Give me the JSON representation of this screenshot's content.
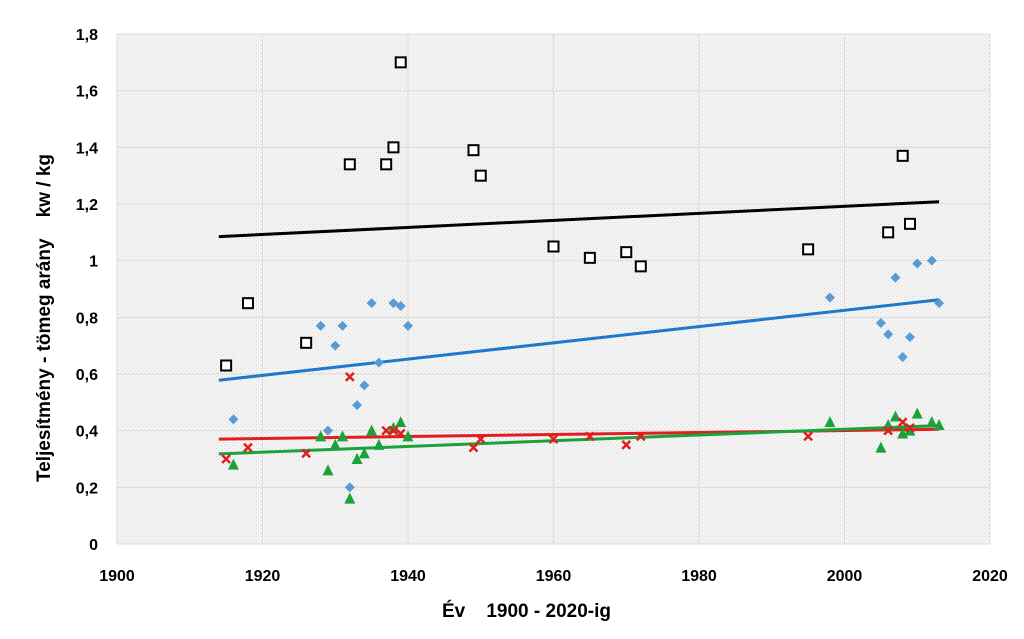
{
  "chart_data": {
    "type": "scatter",
    "xlabel": "Év    1900 - 2020-ig",
    "ylabel": "Teljesítmény - tömeg arány    kw / kg",
    "xlim": [
      1900,
      2020
    ],
    "ylim": [
      0,
      1.8
    ],
    "x_ticks": [
      1900,
      1920,
      1940,
      1960,
      1980,
      2000,
      2020
    ],
    "y_ticks": [
      0,
      0.2,
      0.4,
      0.6,
      0.8,
      1,
      1.2,
      1.4,
      1.6,
      1.8
    ],
    "y_tick_labels": [
      "0",
      "0,2",
      "0,4",
      "0,6",
      "0,8",
      "1",
      "1,2",
      "1,4",
      "1,6",
      "1,8"
    ],
    "grid": true,
    "plot_background": "#f2f2f2",
    "series": [
      {
        "marker": "open-square",
        "color": "#000000",
        "points": [
          [
            1915,
            0.63
          ],
          [
            1918,
            0.85
          ],
          [
            1926,
            0.71
          ],
          [
            1932,
            1.34
          ],
          [
            1937,
            1.34
          ],
          [
            1938,
            1.4
          ],
          [
            1939,
            1.7
          ],
          [
            1949,
            1.39
          ],
          [
            1950,
            1.3
          ],
          [
            1960,
            1.05
          ],
          [
            1965,
            1.01
          ],
          [
            1970,
            1.03
          ],
          [
            1972,
            0.98
          ],
          [
            1995,
            1.04
          ],
          [
            2006,
            1.1
          ],
          [
            2008,
            1.37
          ],
          [
            2009,
            1.13
          ]
        ],
        "trend": {
          "color": "#000000",
          "from": [
            1914,
            1.085
          ],
          "to": [
            2013,
            1.208
          ]
        }
      },
      {
        "marker": "diamond",
        "color": "#5b9bd5",
        "points": [
          [
            1916,
            0.44
          ],
          [
            1928,
            0.77
          ],
          [
            1929,
            0.4
          ],
          [
            1930,
            0.7
          ],
          [
            1931,
            0.77
          ],
          [
            1932,
            0.2
          ],
          [
            1933,
            0.49
          ],
          [
            1934,
            0.56
          ],
          [
            1935,
            0.85
          ],
          [
            1936,
            0.64
          ],
          [
            1938,
            0.85
          ],
          [
            1939,
            0.84
          ],
          [
            1940,
            0.77
          ],
          [
            1998,
            0.87
          ],
          [
            2005,
            0.78
          ],
          [
            2006,
            0.74
          ],
          [
            2007,
            0.94
          ],
          [
            2008,
            0.66
          ],
          [
            2009,
            0.73
          ],
          [
            2010,
            0.99
          ],
          [
            2012,
            1.0
          ],
          [
            2013,
            0.85
          ]
        ],
        "trend": {
          "color": "#1f78c8",
          "from": [
            1914,
            0.578
          ],
          "to": [
            2013,
            0.862
          ]
        }
      },
      {
        "marker": "x",
        "color": "#e02020",
        "points": [
          [
            1915,
            0.3
          ],
          [
            1918,
            0.34
          ],
          [
            1926,
            0.32
          ],
          [
            1932,
            0.59
          ],
          [
            1937,
            0.4
          ],
          [
            1938,
            0.4
          ],
          [
            1939,
            0.39
          ],
          [
            1949,
            0.34
          ],
          [
            1950,
            0.37
          ],
          [
            1960,
            0.37
          ],
          [
            1965,
            0.38
          ],
          [
            1970,
            0.35
          ],
          [
            1972,
            0.38
          ],
          [
            1995,
            0.38
          ],
          [
            2006,
            0.4
          ],
          [
            2008,
            0.43
          ],
          [
            2009,
            0.41
          ]
        ],
        "trend": {
          "color": "#e02020",
          "from": [
            1914,
            0.37
          ],
          "to": [
            2013,
            0.405
          ]
        }
      },
      {
        "marker": "triangle",
        "color": "#1aa33a",
        "points": [
          [
            1916,
            0.28
          ],
          [
            1928,
            0.38
          ],
          [
            1929,
            0.26
          ],
          [
            1930,
            0.35
          ],
          [
            1931,
            0.38
          ],
          [
            1932,
            0.16
          ],
          [
            1933,
            0.3
          ],
          [
            1934,
            0.32
          ],
          [
            1935,
            0.4
          ],
          [
            1936,
            0.35
          ],
          [
            1938,
            0.41
          ],
          [
            1939,
            0.43
          ],
          [
            1940,
            0.38
          ],
          [
            1998,
            0.43
          ],
          [
            2005,
            0.34
          ],
          [
            2006,
            0.42
          ],
          [
            2007,
            0.45
          ],
          [
            2008,
            0.39
          ],
          [
            2009,
            0.4
          ],
          [
            2010,
            0.46
          ],
          [
            2012,
            0.43
          ],
          [
            2013,
            0.42
          ]
        ],
        "trend": {
          "color": "#1aa33a",
          "from": [
            1914,
            0.318
          ],
          "to": [
            2013,
            0.418
          ]
        }
      }
    ]
  }
}
